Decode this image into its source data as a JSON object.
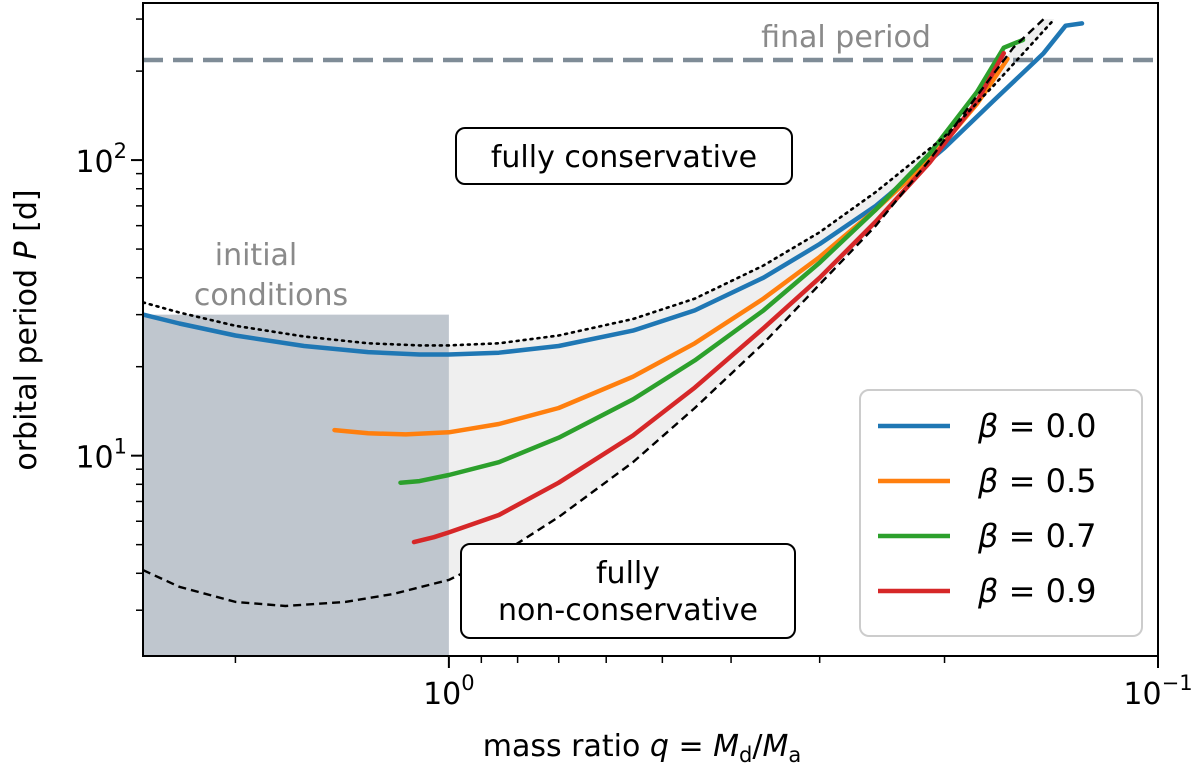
{
  "chart_data": {
    "type": "line",
    "title": "",
    "xlabel": "mass ratio q = M_d/M_a",
    "ylabel": "orbital period P [d]",
    "xlabel_parts": {
      "main": "mass ratio ",
      "q": "q",
      "eq": " = ",
      "M1": "M",
      "sub1": "d",
      "slash": "/",
      "M2": "M",
      "sub2": "a"
    },
    "ylabel_parts": {
      "main": "orbital period ",
      "P": "P",
      "unit": " [d]"
    },
    "x_scale": "log",
    "y_scale": "log",
    "x_reversed": true,
    "xlim": [
      2.7,
      0.1
    ],
    "ylim": [
      2.1,
      340
    ],
    "x_ticks": [
      {
        "value": 1.0,
        "base": "10",
        "exp": "0"
      },
      {
        "value": 0.1,
        "base": "10",
        "exp": "−1"
      }
    ],
    "y_ticks": [
      {
        "value": 10,
        "base": "10",
        "exp": "1"
      },
      {
        "value": 100,
        "base": "10",
        "exp": "2"
      }
    ],
    "hline": {
      "label": "final period",
      "value": 218,
      "color": "#7f8c97"
    },
    "initial_region": {
      "label_line1": "initial",
      "label_line2": "conditions",
      "x_range": [
        2.7,
        1.0
      ],
      "y_max": 30
    },
    "annotations": {
      "conservative": "fully conservative",
      "nonconservative_line1": "fully",
      "nonconservative_line2": "non-conservative"
    },
    "legend": {
      "placement": "lower-right"
    },
    "series": [
      {
        "name": "β = 0.0",
        "label_beta": "β",
        "label_value": "= 0.0",
        "color": "#1f77b4",
        "style": "solid",
        "x": [
          2.7,
          2.4,
          2.0,
          1.6,
          1.3,
          1.1,
          1.0,
          0.85,
          0.7,
          0.55,
          0.45,
          0.36,
          0.3,
          0.25,
          0.2,
          0.17,
          0.145,
          0.135,
          0.128
        ],
        "y": [
          30,
          28,
          25.5,
          23.5,
          22.4,
          22,
          22,
          22.3,
          23.5,
          26.5,
          31,
          40,
          52,
          70,
          110,
          160,
          230,
          285,
          290
        ]
      },
      {
        "name": "β = 0.5",
        "label_beta": "β",
        "label_value": "= 0.5",
        "color": "#ff7f0e",
        "style": "solid",
        "x": [
          1.45,
          1.3,
          1.15,
          1.0,
          0.85,
          0.7,
          0.55,
          0.45,
          0.36,
          0.3,
          0.25,
          0.21,
          0.18,
          0.163
        ],
        "y": [
          12.2,
          11.9,
          11.8,
          12,
          12.8,
          14.5,
          18.5,
          24,
          34,
          47,
          68,
          100,
          155,
          220
        ]
      },
      {
        "name": "β = 0.7",
        "label_beta": "β",
        "label_value": "= 0.7",
        "color": "#2ca02c",
        "style": "solid",
        "x": [
          1.17,
          1.1,
          1.0,
          0.85,
          0.7,
          0.55,
          0.45,
          0.36,
          0.3,
          0.25,
          0.21,
          0.18,
          0.165,
          0.155
        ],
        "y": [
          8.1,
          8.2,
          8.6,
          9.5,
          11.5,
          15.5,
          21,
          31,
          45,
          68,
          105,
          170,
          240,
          255
        ]
      },
      {
        "name": "β = 0.9",
        "label_beta": "β",
        "label_value": "= 0.9",
        "color": "#d62728",
        "style": "solid",
        "x": [
          1.12,
          1.05,
          1.0,
          0.85,
          0.7,
          0.55,
          0.45,
          0.36,
          0.3,
          0.25,
          0.21,
          0.18,
          0.165
        ],
        "y": [
          5.1,
          5.3,
          5.5,
          6.3,
          8.1,
          11.7,
          17,
          27,
          40,
          62,
          98,
          158,
          230
        ]
      },
      {
        "name": "fully conservative",
        "color": "#000000",
        "style": "dotted",
        "x": [
          2.7,
          2.4,
          2.0,
          1.6,
          1.3,
          1.1,
          1.0,
          0.85,
          0.7,
          0.55,
          0.45,
          0.36,
          0.3,
          0.25,
          0.2,
          0.17,
          0.15,
          0.14
        ],
        "y": [
          33,
          30.5,
          27.5,
          25.3,
          24,
          23.6,
          23.6,
          24,
          25.5,
          29,
          34,
          44,
          57,
          78,
          120,
          180,
          250,
          300
        ]
      },
      {
        "name": "fully non-conservative",
        "color": "#000000",
        "style": "dashed",
        "x": [
          2.7,
          2.4,
          2.0,
          1.7,
          1.4,
          1.2,
          1.0,
          0.85,
          0.7,
          0.55,
          0.45,
          0.36,
          0.3,
          0.25,
          0.21,
          0.18,
          0.16,
          0.145
        ],
        "y": [
          4.1,
          3.6,
          3.2,
          3.1,
          3.2,
          3.4,
          3.8,
          4.6,
          6.2,
          9.5,
          14.5,
          24,
          38,
          60,
          100,
          165,
          240,
          300
        ]
      }
    ]
  }
}
